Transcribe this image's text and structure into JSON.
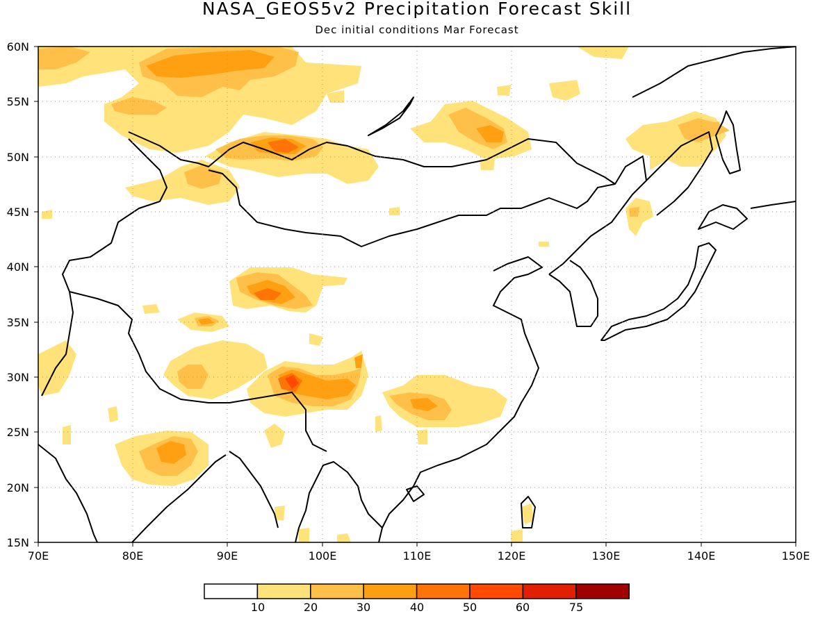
{
  "map": {
    "title": "NASA_GEOS5v2 Precipitation Forecast Skill",
    "subtitle": "Dec initial conditions  Mar Forecast",
    "lon_range": [
      70,
      150
    ],
    "lat_range": [
      15,
      60
    ],
    "lon_ticks": [
      "70E",
      "80E",
      "90E",
      "100E",
      "110E",
      "120E",
      "130E",
      "140E",
      "150E"
    ],
    "lat_ticks": [
      "60N",
      "55N",
      "50N",
      "45N",
      "40N",
      "35N",
      "30N",
      "25N",
      "20N",
      "15N"
    ],
    "grid": "dotted"
  },
  "legend": {
    "labels": [
      "10",
      "20",
      "30",
      "40",
      "50",
      "60",
      "75"
    ],
    "colors": [
      "#ffffff",
      "#ffe27a",
      "#ffc04a",
      "#ffa012",
      "#ff7406",
      "#ff4a00",
      "#e02000",
      "#a00000"
    ]
  }
}
